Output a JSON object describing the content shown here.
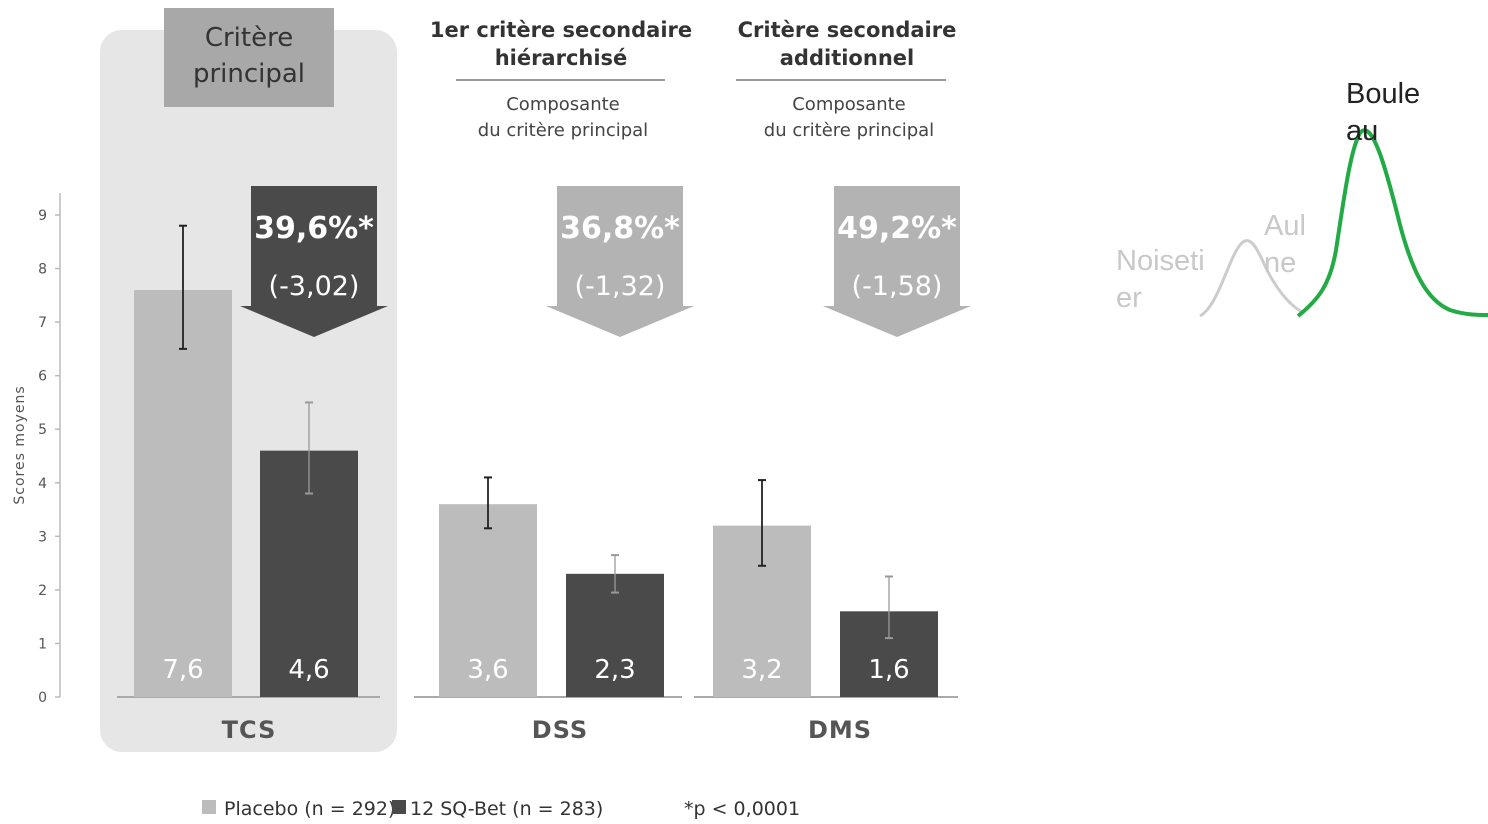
{
  "chart_data": [
    {
      "type": "bar",
      "ylabel": "Scores moyens",
      "ylim": [
        0,
        9
      ],
      "yticks": [
        0,
        1,
        2,
        3,
        4,
        5,
        6,
        7,
        8,
        9
      ],
      "categories": [
        "TCS",
        "DSS",
        "DMS"
      ],
      "series": [
        {
          "name": "Placebo (n = 292)",
          "values": [
            7.6,
            3.6,
            3.2
          ],
          "value_labels": [
            "7,6",
            "3,6",
            "3,2"
          ],
          "error": [
            [
              6.5,
              8.8
            ],
            [
              3.15,
              4.1
            ],
            [
              2.45,
              4.05
            ]
          ],
          "color": "#bcbcbc"
        },
        {
          "name": "12 SQ-Bet (n = 283)",
          "values": [
            4.6,
            2.3,
            1.6
          ],
          "value_labels": [
            "4,6",
            "2,3",
            "1,6"
          ],
          "error": [
            [
              3.8,
              5.5
            ],
            [
              1.95,
              2.65
            ],
            [
              1.1,
              2.25
            ]
          ],
          "color": "#4a4a4a"
        }
      ],
      "groups": [
        {
          "category": "TCS",
          "header": [
            "Critère",
            "principal"
          ],
          "subheader": [],
          "reduction_pct": "39,6%*",
          "reduction_diff": "(-3,02)",
          "highlighted": true
        },
        {
          "category": "DSS",
          "header": [
            "1er critère secondaire",
            "hiérarchisé"
          ],
          "subheader": [
            "Composante",
            "du critère principal"
          ],
          "reduction_pct": "36,8%*",
          "reduction_diff": "(-1,32)",
          "highlighted": false
        },
        {
          "category": "DMS",
          "header": [
            "Critère secondaire",
            "additionnel"
          ],
          "subheader": [
            "Composante",
            "du critère principal"
          ],
          "reduction_pct": "49,2%*",
          "reduction_diff": "(-1,58)",
          "highlighted": false
        }
      ],
      "footnote": "*p < 0,0001",
      "colors": {
        "placebo": "#bcbcbc",
        "treatment": "#4a4a4a",
        "highlight_box": "#e6e6e6",
        "header_box": "#a8a8a8",
        "arrow_dark": "#4a4a4a",
        "arrow_light": "#b3b3b3"
      }
    },
    {
      "type": "line",
      "series": [
        {
          "name": "Noisetier",
          "label_lines": [
            "Noiseti",
            "er"
          ],
          "color": "#cccccc",
          "x": [
            0,
            1,
            2,
            3,
            4
          ],
          "y": [
            0.05,
            0.3,
            0.85,
            0.35,
            0.05
          ]
        },
        {
          "name": "Aulne",
          "label_lines": [
            "Aul",
            "ne"
          ],
          "color": "#cccccc",
          "x": [],
          "y": []
        },
        {
          "name": "Bouleau",
          "label_lines": [
            "Boule",
            "au"
          ],
          "color": "#22aa44",
          "x": [
            0,
            1,
            2,
            3,
            4,
            5,
            6
          ],
          "y": [
            0.05,
            0.25,
            1.0,
            0.5,
            0.1,
            0.02,
            0.0
          ]
        }
      ]
    }
  ]
}
